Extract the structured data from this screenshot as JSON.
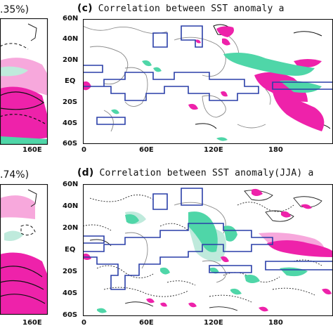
{
  "panel_left_top": {
    "percent": ".35%)",
    "lon_label": "160E"
  },
  "panel_left_bottom": {
    "percent": ".74%)",
    "lon_label": "160E"
  },
  "panel_c": {
    "letter": "(c)",
    "title": "Correlation between SST anomaly a",
    "lat_labels": [
      "60N",
      "40N",
      "20N",
      "EQ",
      "20S",
      "40S",
      "60S"
    ],
    "lon_labels": [
      "0",
      "60E",
      "120E",
      "180"
    ]
  },
  "panel_d": {
    "letter": "(d)",
    "title": "Correlation between SST anomaly(JJA) a",
    "lat_labels": [
      "60N",
      "40N",
      "20N",
      "EQ",
      "20S",
      "40S",
      "60S"
    ],
    "lon_labels": [
      "0",
      "60E",
      "120E",
      "180"
    ]
  },
  "colors": {
    "positive": "#ee22aa",
    "positive_light": "#f7a8dc",
    "negative": "#4fd6a8",
    "negative_light": "#bfeadc",
    "box": "#2a3fa8"
  }
}
